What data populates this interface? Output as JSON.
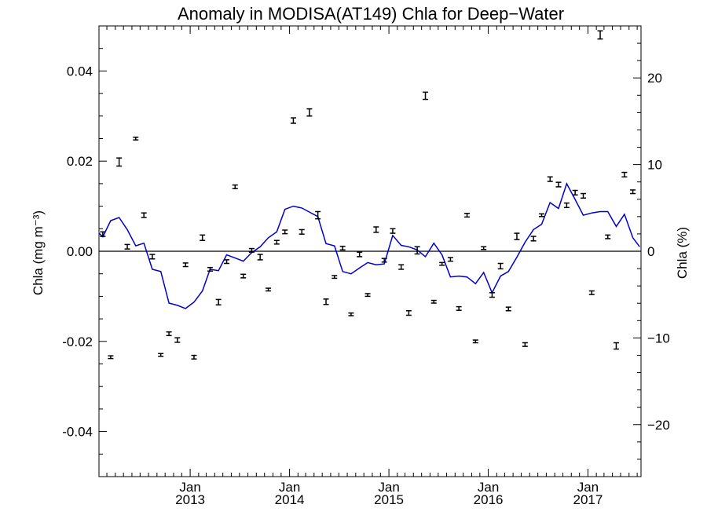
{
  "chart_data": {
    "type": "scatter",
    "title": "Anomaly in MODISA(AT149) Chla for Deep−Water",
    "ylabel_left": "Chla (mg m⁻³)",
    "ylabel_right": "Chla (%)",
    "ylim_left": [
      -0.05,
      0.05
    ],
    "ylim_right": [
      -26,
      26
    ],
    "xlim": [
      "2012-02-01",
      "2017-07-15"
    ],
    "x_ticks": [
      {
        "month": "Jan",
        "year": "2013",
        "date": "2013-01-01"
      },
      {
        "month": "Jan",
        "year": "2014",
        "date": "2014-01-01"
      },
      {
        "month": "Jan",
        "year": "2015",
        "date": "2015-01-01"
      },
      {
        "month": "Jan",
        "year": "2016",
        "date": "2016-01-01"
      },
      {
        "month": "Jan",
        "year": "2017",
        "date": "2017-01-01"
      }
    ],
    "y_ticks_left": [
      "-0.04",
      "-0.02",
      "0.00",
      "0.02",
      "0.04"
    ],
    "y_tick_values_left": [
      -0.04,
      -0.02,
      0.0,
      0.02,
      0.04
    ],
    "y_ticks_right": [
      "−20",
      "−10",
      "0",
      "10",
      "20"
    ],
    "y_tick_values_right": [
      -20,
      -10,
      0,
      10,
      20
    ],
    "reference_line": 0.0,
    "colors": {
      "line": "#0000cc",
      "points": "#000000",
      "axis": "#000000"
    },
    "series": [
      {
        "style": "errorbar-points",
        "points": [
          {
            "x": "2012-02-15",
            "y": 0.0038,
            "err": 0.0005
          },
          {
            "x": "2012-03-15",
            "y": -0.0235,
            "err": 0.0003
          },
          {
            "x": "2012-04-15",
            "y": 0.0198,
            "err": 0.0009
          },
          {
            "x": "2012-05-15",
            "y": 0.001,
            "err": 0.0005
          },
          {
            "x": "2012-06-15",
            "y": 0.025,
            "err": 0.0003
          },
          {
            "x": "2012-07-15",
            "y": 0.008,
            "err": 0.0005
          },
          {
            "x": "2012-08-15",
            "y": -0.0012,
            "err": 0.0005
          },
          {
            "x": "2012-09-15",
            "y": -0.023,
            "err": 0.0003
          },
          {
            "x": "2012-10-15",
            "y": -0.0183,
            "err": 0.0004
          },
          {
            "x": "2012-11-15",
            "y": -0.0197,
            "err": 0.0005
          },
          {
            "x": "2012-12-15",
            "y": -0.003,
            "err": 0.0004
          },
          {
            "x": "2013-01-15",
            "y": -0.0235,
            "err": 0.0004
          },
          {
            "x": "2013-02-15",
            "y": 0.003,
            "err": 0.0006
          },
          {
            "x": "2013-03-15",
            "y": -0.004,
            "err": 0.0004
          },
          {
            "x": "2013-04-15",
            "y": -0.0113,
            "err": 0.0006
          },
          {
            "x": "2013-05-15",
            "y": -0.0023,
            "err": 0.0004
          },
          {
            "x": "2013-06-15",
            "y": 0.0143,
            "err": 0.0004
          },
          {
            "x": "2013-07-15",
            "y": -0.0055,
            "err": 0.0004
          },
          {
            "x": "2013-08-15",
            "y": 0.0002,
            "err": 0.0004
          },
          {
            "x": "2013-09-15",
            "y": -0.0013,
            "err": 0.0006
          },
          {
            "x": "2013-10-15",
            "y": -0.0085,
            "err": 0.0003
          },
          {
            "x": "2013-11-15",
            "y": 0.002,
            "err": 0.0004
          },
          {
            "x": "2013-12-15",
            "y": 0.0043,
            "err": 0.0004
          },
          {
            "x": "2014-01-15",
            "y": 0.029,
            "err": 0.0006
          },
          {
            "x": "2014-02-15",
            "y": 0.0043,
            "err": 0.0005
          },
          {
            "x": "2014-03-15",
            "y": 0.0308,
            "err": 0.0008
          },
          {
            "x": "2014-04-15",
            "y": 0.008,
            "err": 0.0008
          },
          {
            "x": "2014-05-15",
            "y": -0.0112,
            "err": 0.0006
          },
          {
            "x": "2014-06-15",
            "y": -0.0057,
            "err": 0.0003
          },
          {
            "x": "2014-07-15",
            "y": 0.0007,
            "err": 0.0004
          },
          {
            "x": "2014-08-15",
            "y": -0.014,
            "err": 0.0003
          },
          {
            "x": "2014-09-15",
            "y": -0.0007,
            "err": 0.0005
          },
          {
            "x": "2014-10-15",
            "y": -0.0097,
            "err": 0.0003
          },
          {
            "x": "2014-11-15",
            "y": 0.0048,
            "err": 0.0006
          },
          {
            "x": "2014-12-15",
            "y": -0.002,
            "err": 0.0004
          },
          {
            "x": "2015-01-15",
            "y": 0.0045,
            "err": 0.0005
          },
          {
            "x": "2015-02-15",
            "y": -0.0035,
            "err": 0.0005
          },
          {
            "x": "2015-03-15",
            "y": -0.0137,
            "err": 0.0005
          },
          {
            "x": "2015-04-15",
            "y": 0.0002,
            "err": 0.0008
          },
          {
            "x": "2015-05-15",
            "y": 0.0345,
            "err": 0.0008
          },
          {
            "x": "2015-06-15",
            "y": -0.0112,
            "err": 0.0003
          },
          {
            "x": "2015-07-15",
            "y": -0.0028,
            "err": 0.0003
          },
          {
            "x": "2015-08-15",
            "y": -0.0018,
            "err": 0.0004
          },
          {
            "x": "2015-09-15",
            "y": -0.0127,
            "err": 0.0004
          },
          {
            "x": "2015-10-15",
            "y": 0.008,
            "err": 0.0004
          },
          {
            "x": "2015-11-15",
            "y": -0.02,
            "err": 0.0003
          },
          {
            "x": "2015-12-15",
            "y": 0.0007,
            "err": 0.0003
          },
          {
            "x": "2016-01-15",
            "y": -0.0097,
            "err": 0.0005
          },
          {
            "x": "2016-02-15",
            "y": -0.0033,
            "err": 0.0006
          },
          {
            "x": "2016-03-15",
            "y": -0.0128,
            "err": 0.0004
          },
          {
            "x": "2016-04-15",
            "y": 0.0033,
            "err": 0.0007
          },
          {
            "x": "2016-05-15",
            "y": -0.0207,
            "err": 0.0004
          },
          {
            "x": "2016-06-15",
            "y": 0.0028,
            "err": 0.0005
          },
          {
            "x": "2016-07-15",
            "y": 0.008,
            "err": 0.0003
          },
          {
            "x": "2016-08-15",
            "y": 0.016,
            "err": 0.0005
          },
          {
            "x": "2016-09-15",
            "y": 0.0148,
            "err": 0.0005
          },
          {
            "x": "2016-10-15",
            "y": 0.0102,
            "err": 0.0005
          },
          {
            "x": "2016-11-15",
            "y": 0.013,
            "err": 0.0005
          },
          {
            "x": "2016-12-15",
            "y": 0.0123,
            "err": 0.0005
          },
          {
            "x": "2017-01-15",
            "y": -0.0092,
            "err": 0.0004
          },
          {
            "x": "2017-02-15",
            "y": 0.048,
            "err": 0.0009
          },
          {
            "x": "2017-03-15",
            "y": 0.0032,
            "err": 0.0004
          },
          {
            "x": "2017-04-15",
            "y": -0.021,
            "err": 0.0007
          },
          {
            "x": "2017-05-15",
            "y": 0.017,
            "err": 0.0005
          },
          {
            "x": "2017-06-15",
            "y": 0.0132,
            "err": 0.0004
          }
        ]
      },
      {
        "style": "line",
        "x": [
          "2012-02-01",
          "2012-02-15",
          "2012-03-15",
          "2012-04-15",
          "2012-05-15",
          "2012-06-15",
          "2012-07-15",
          "2012-08-15",
          "2012-09-15",
          "2012-10-15",
          "2012-11-15",
          "2012-12-15",
          "2013-01-15",
          "2013-02-15",
          "2013-03-15",
          "2013-04-15",
          "2013-05-15",
          "2013-06-15",
          "2013-07-15",
          "2013-08-15",
          "2013-09-15",
          "2013-10-15",
          "2013-11-15",
          "2013-12-15",
          "2014-01-15",
          "2014-02-15",
          "2014-03-15",
          "2014-04-15",
          "2014-05-15",
          "2014-06-15",
          "2014-07-15",
          "2014-08-15",
          "2014-09-15",
          "2014-10-15",
          "2014-11-15",
          "2014-12-15",
          "2015-01-15",
          "2015-02-15",
          "2015-03-15",
          "2015-04-15",
          "2015-05-15",
          "2015-06-15",
          "2015-07-15",
          "2015-08-15",
          "2015-09-15",
          "2015-10-15",
          "2015-11-15",
          "2015-12-15",
          "2016-01-15",
          "2016-02-15",
          "2016-03-15",
          "2016-04-15",
          "2016-05-15",
          "2016-06-15",
          "2016-07-15",
          "2016-08-15",
          "2016-09-15",
          "2016-10-15",
          "2016-11-15",
          "2016-12-15",
          "2017-01-15",
          "2017-02-15",
          "2017-03-15",
          "2017-04-15",
          "2017-05-15",
          "2017-06-15",
          "2017-07-10"
        ],
        "y": [
          0.004,
          0.0032,
          0.0068,
          0.0075,
          0.0048,
          0.0012,
          0.0018,
          -0.004,
          -0.0045,
          -0.0115,
          -0.012,
          -0.0127,
          -0.0113,
          -0.0088,
          -0.004,
          -0.0043,
          -0.0008,
          -0.0015,
          -0.0022,
          -0.0003,
          0.001,
          0.003,
          0.0043,
          0.0093,
          0.01,
          0.0096,
          0.0087,
          0.0077,
          0.0017,
          0.0012,
          -0.0045,
          -0.005,
          -0.0037,
          -0.0025,
          -0.003,
          -0.0028,
          0.0035,
          0.0013,
          0.001,
          0.0003,
          -0.0012,
          0.0018,
          -0.0008,
          -0.0057,
          -0.0055,
          -0.0057,
          -0.0072,
          -0.0047,
          -0.0092,
          -0.0055,
          -0.0045,
          -0.0013,
          0.002,
          0.0048,
          0.006,
          0.0108,
          0.0095,
          0.015,
          0.0115,
          0.008,
          0.0085,
          0.0088,
          0.0088,
          0.0055,
          0.0082,
          0.003,
          0.001
        ]
      }
    ]
  }
}
